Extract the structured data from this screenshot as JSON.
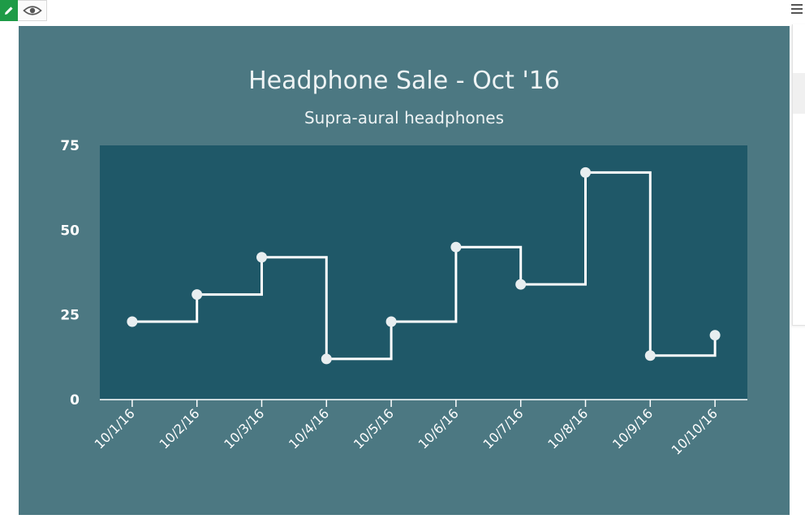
{
  "toolbar": {
    "edit_icon": "pencil-icon",
    "view_icon": "eye-icon",
    "menu_icon": "hamburger-menu-icon"
  },
  "colors": {
    "frame": "#4c7882",
    "plot_area": "#1f5868",
    "line": "#ffffff",
    "title_text": "#eef3f4",
    "axis_text": "#ffffff",
    "edit_button": "#1e9b47"
  },
  "chart_data": {
    "type": "line",
    "line_shape": "step-after",
    "title": "Headphone Sale - Oct '16",
    "subtitle": "Supra-aural headphones",
    "categories": [
      "10/1/16",
      "10/2/16",
      "10/3/16",
      "10/4/16",
      "10/5/16",
      "10/6/16",
      "10/7/16",
      "10/8/16",
      "10/9/16",
      "10/10/16"
    ],
    "series": [
      {
        "values": [
          23,
          31,
          42,
          12,
          23,
          45,
          34,
          67,
          13,
          19
        ]
      }
    ],
    "ylim": [
      0,
      75
    ],
    "yticks": [
      0,
      25,
      50,
      75
    ],
    "grid": false,
    "legend": false
  }
}
